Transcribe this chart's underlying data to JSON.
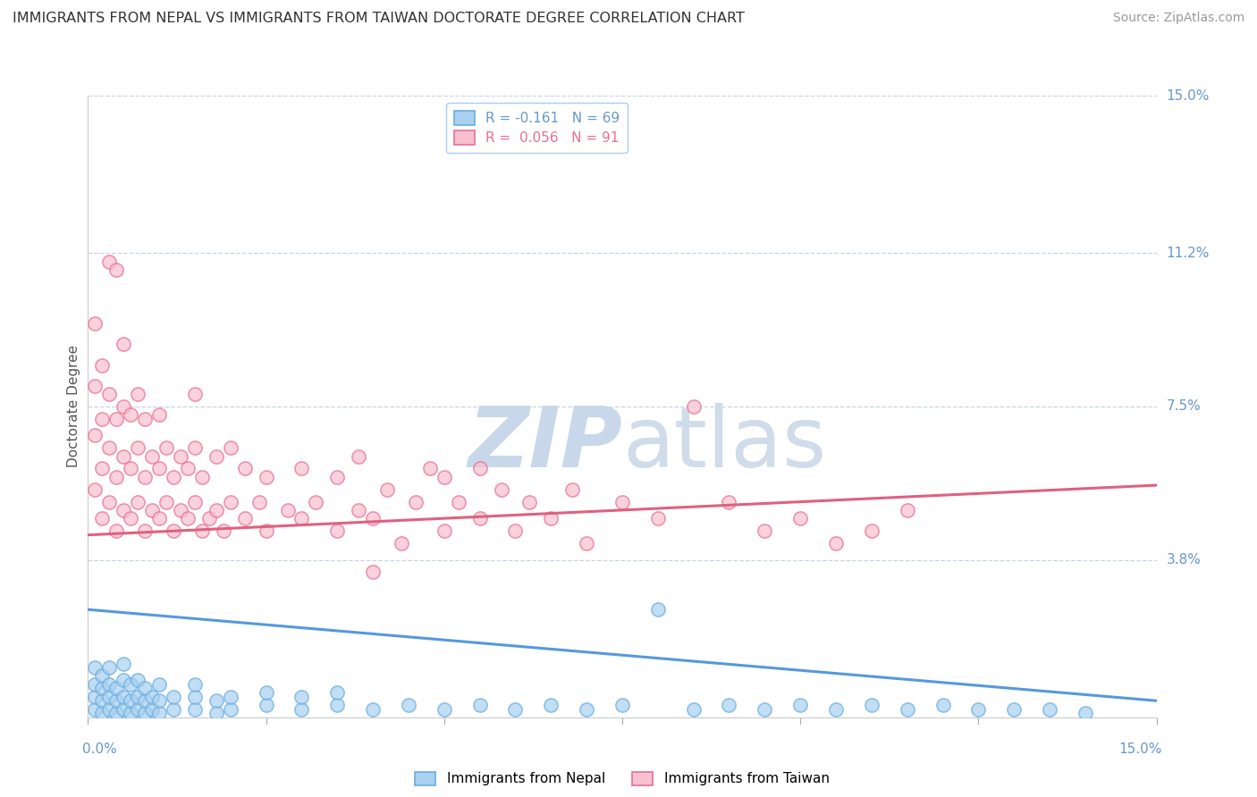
{
  "title": "IMMIGRANTS FROM NEPAL VS IMMIGRANTS FROM TAIWAN DOCTORATE DEGREE CORRELATION CHART",
  "source": "Source: ZipAtlas.com",
  "ylabel": "Doctorate Degree",
  "xlim": [
    0.0,
    0.15
  ],
  "ylim": [
    0.0,
    0.15
  ],
  "nepal_R": -0.161,
  "nepal_N": 69,
  "taiwan_R": 0.056,
  "taiwan_N": 91,
  "nepal_color": "#a8d0f0",
  "taiwan_color": "#f8c0d0",
  "nepal_edge_color": "#6aaee0",
  "taiwan_edge_color": "#e87090",
  "nepal_line_color": "#5599dd",
  "taiwan_line_color": "#e06080",
  "background_color": "#ffffff",
  "grid_color": "#c8d4e8",
  "axis_label_color": "#6699cc",
  "title_color": "#333333",
  "ytick_positions": [
    0.038,
    0.075,
    0.112,
    0.15
  ],
  "ytick_labels": [
    "3.8%",
    "7.5%",
    "11.2%",
    "15.0%"
  ],
  "nepal_trend_x": [
    0.0,
    0.15
  ],
  "nepal_trend_y": [
    0.026,
    0.004
  ],
  "taiwan_trend_y": [
    0.044,
    0.056
  ],
  "nepal_scatter": [
    [
      0.001,
      0.002
    ],
    [
      0.001,
      0.005
    ],
    [
      0.001,
      0.008
    ],
    [
      0.001,
      0.012
    ],
    [
      0.002,
      0.001
    ],
    [
      0.002,
      0.004
    ],
    [
      0.002,
      0.007
    ],
    [
      0.002,
      0.01
    ],
    [
      0.003,
      0.002
    ],
    [
      0.003,
      0.005
    ],
    [
      0.003,
      0.008
    ],
    [
      0.003,
      0.012
    ],
    [
      0.004,
      0.001
    ],
    [
      0.004,
      0.004
    ],
    [
      0.004,
      0.007
    ],
    [
      0.005,
      0.002
    ],
    [
      0.005,
      0.005
    ],
    [
      0.005,
      0.009
    ],
    [
      0.005,
      0.013
    ],
    [
      0.006,
      0.001
    ],
    [
      0.006,
      0.004
    ],
    [
      0.006,
      0.008
    ],
    [
      0.007,
      0.002
    ],
    [
      0.007,
      0.005
    ],
    [
      0.007,
      0.009
    ],
    [
      0.008,
      0.001
    ],
    [
      0.008,
      0.004
    ],
    [
      0.008,
      0.007
    ],
    [
      0.009,
      0.002
    ],
    [
      0.009,
      0.005
    ],
    [
      0.01,
      0.001
    ],
    [
      0.01,
      0.004
    ],
    [
      0.01,
      0.008
    ],
    [
      0.012,
      0.002
    ],
    [
      0.012,
      0.005
    ],
    [
      0.015,
      0.002
    ],
    [
      0.015,
      0.005
    ],
    [
      0.015,
      0.008
    ],
    [
      0.018,
      0.001
    ],
    [
      0.018,
      0.004
    ],
    [
      0.02,
      0.002
    ],
    [
      0.02,
      0.005
    ],
    [
      0.025,
      0.003
    ],
    [
      0.025,
      0.006
    ],
    [
      0.03,
      0.002
    ],
    [
      0.03,
      0.005
    ],
    [
      0.035,
      0.003
    ],
    [
      0.035,
      0.006
    ],
    [
      0.04,
      0.002
    ],
    [
      0.045,
      0.003
    ],
    [
      0.05,
      0.002
    ],
    [
      0.055,
      0.003
    ],
    [
      0.06,
      0.002
    ],
    [
      0.065,
      0.003
    ],
    [
      0.07,
      0.002
    ],
    [
      0.075,
      0.003
    ],
    [
      0.08,
      0.026
    ],
    [
      0.085,
      0.002
    ],
    [
      0.09,
      0.003
    ],
    [
      0.095,
      0.002
    ],
    [
      0.1,
      0.003
    ],
    [
      0.105,
      0.002
    ],
    [
      0.11,
      0.003
    ],
    [
      0.115,
      0.002
    ],
    [
      0.12,
      0.003
    ],
    [
      0.125,
      0.002
    ],
    [
      0.13,
      0.002
    ],
    [
      0.135,
      0.002
    ],
    [
      0.14,
      0.001
    ]
  ],
  "taiwan_scatter": [
    [
      0.001,
      0.055
    ],
    [
      0.001,
      0.068
    ],
    [
      0.001,
      0.08
    ],
    [
      0.001,
      0.095
    ],
    [
      0.002,
      0.048
    ],
    [
      0.002,
      0.06
    ],
    [
      0.002,
      0.072
    ],
    [
      0.002,
      0.085
    ],
    [
      0.003,
      0.052
    ],
    [
      0.003,
      0.065
    ],
    [
      0.003,
      0.078
    ],
    [
      0.003,
      0.11
    ],
    [
      0.004,
      0.045
    ],
    [
      0.004,
      0.058
    ],
    [
      0.004,
      0.072
    ],
    [
      0.004,
      0.108
    ],
    [
      0.005,
      0.05
    ],
    [
      0.005,
      0.063
    ],
    [
      0.005,
      0.075
    ],
    [
      0.005,
      0.09
    ],
    [
      0.006,
      0.048
    ],
    [
      0.006,
      0.06
    ],
    [
      0.006,
      0.073
    ],
    [
      0.007,
      0.052
    ],
    [
      0.007,
      0.065
    ],
    [
      0.007,
      0.078
    ],
    [
      0.008,
      0.045
    ],
    [
      0.008,
      0.058
    ],
    [
      0.008,
      0.072
    ],
    [
      0.009,
      0.05
    ],
    [
      0.009,
      0.063
    ],
    [
      0.01,
      0.048
    ],
    [
      0.01,
      0.06
    ],
    [
      0.01,
      0.073
    ],
    [
      0.011,
      0.052
    ],
    [
      0.011,
      0.065
    ],
    [
      0.012,
      0.045
    ],
    [
      0.012,
      0.058
    ],
    [
      0.013,
      0.05
    ],
    [
      0.013,
      0.063
    ],
    [
      0.014,
      0.048
    ],
    [
      0.014,
      0.06
    ],
    [
      0.015,
      0.052
    ],
    [
      0.015,
      0.065
    ],
    [
      0.015,
      0.078
    ],
    [
      0.016,
      0.045
    ],
    [
      0.016,
      0.058
    ],
    [
      0.017,
      0.048
    ],
    [
      0.018,
      0.05
    ],
    [
      0.018,
      0.063
    ],
    [
      0.019,
      0.045
    ],
    [
      0.02,
      0.052
    ],
    [
      0.02,
      0.065
    ],
    [
      0.022,
      0.048
    ],
    [
      0.022,
      0.06
    ],
    [
      0.024,
      0.052
    ],
    [
      0.025,
      0.045
    ],
    [
      0.025,
      0.058
    ],
    [
      0.028,
      0.05
    ],
    [
      0.03,
      0.048
    ],
    [
      0.03,
      0.06
    ],
    [
      0.032,
      0.052
    ],
    [
      0.035,
      0.045
    ],
    [
      0.035,
      0.058
    ],
    [
      0.038,
      0.05
    ],
    [
      0.038,
      0.063
    ],
    [
      0.04,
      0.048
    ],
    [
      0.04,
      0.035
    ],
    [
      0.042,
      0.055
    ],
    [
      0.044,
      0.042
    ],
    [
      0.046,
      0.052
    ],
    [
      0.048,
      0.06
    ],
    [
      0.05,
      0.045
    ],
    [
      0.05,
      0.058
    ],
    [
      0.052,
      0.052
    ],
    [
      0.055,
      0.048
    ],
    [
      0.055,
      0.06
    ],
    [
      0.058,
      0.055
    ],
    [
      0.06,
      0.045
    ],
    [
      0.062,
      0.052
    ],
    [
      0.065,
      0.048
    ],
    [
      0.068,
      0.055
    ],
    [
      0.07,
      0.042
    ],
    [
      0.075,
      0.052
    ],
    [
      0.08,
      0.048
    ],
    [
      0.085,
      0.075
    ],
    [
      0.09,
      0.052
    ],
    [
      0.095,
      0.045
    ],
    [
      0.1,
      0.048
    ],
    [
      0.105,
      0.042
    ],
    [
      0.11,
      0.045
    ],
    [
      0.115,
      0.05
    ]
  ],
  "legend_nepal_label": "R = -0.161   N = 69",
  "legend_taiwan_label": "R =  0.056   N = 91"
}
